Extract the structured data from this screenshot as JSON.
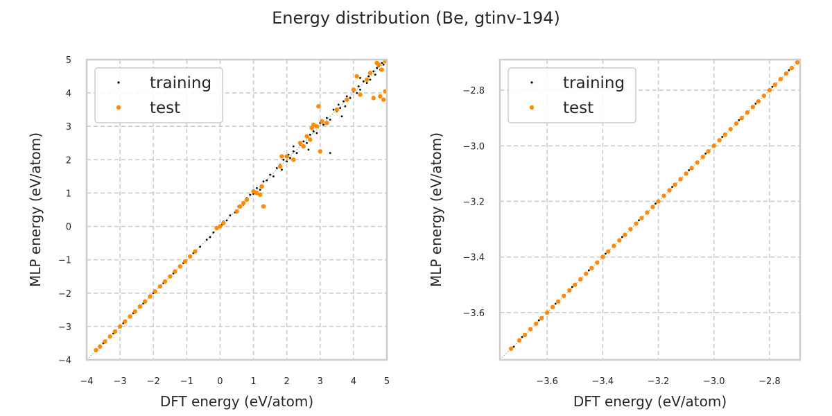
{
  "figure": {
    "title": "Energy distribution (Be, gtinv-194)"
  },
  "colors": {
    "training": "#000000",
    "test": "#ff8c00",
    "grid": "#cccccc",
    "frame": "#cccccc",
    "diagonal": "#999999"
  },
  "chart_data": [
    {
      "type": "scatter",
      "xlabel": "DFT energy (eV/atom)",
      "ylabel": "MLP energy (eV/atom)",
      "xlim": [
        -4,
        5
      ],
      "ylim": [
        -4,
        5
      ],
      "xticks": [
        -4,
        -3,
        -2,
        -1,
        0,
        1,
        2,
        3,
        4,
        5
      ],
      "yticks": [
        -4,
        -3,
        -2,
        -1,
        0,
        1,
        2,
        3,
        4,
        5
      ],
      "tick_labels_x": [
        "−4",
        "−3",
        "−2",
        "−1",
        "0",
        "1",
        "2",
        "3",
        "4",
        "5"
      ],
      "tick_labels_y": [
        "−4",
        "−3",
        "−2",
        "−1",
        "0",
        "1",
        "2",
        "3",
        "4",
        "5"
      ],
      "grid": true,
      "legend": "upper-left",
      "diagonal": "y=x",
      "series": [
        {
          "name": "training",
          "marker": "small-dot",
          "points": [
            [
              -3.7,
              -3.69
            ],
            [
              -3.5,
              -3.5
            ],
            [
              -3.2,
              -3.21
            ],
            [
              -2.9,
              -2.9
            ],
            [
              -2.6,
              -2.6
            ],
            [
              -2.3,
              -2.31
            ],
            [
              -2.0,
              -2.0
            ],
            [
              -1.7,
              -1.7
            ],
            [
              -1.4,
              -1.41
            ],
            [
              -1.1,
              -1.1
            ],
            [
              -0.8,
              -0.8
            ],
            [
              -0.6,
              -0.61
            ],
            [
              -0.4,
              -0.4
            ],
            [
              -0.3,
              -0.32
            ],
            [
              -0.2,
              -0.18
            ],
            [
              -0.1,
              -0.08
            ],
            [
              0.05,
              0.05
            ],
            [
              0.1,
              0.15
            ],
            [
              0.2,
              0.18
            ],
            [
              0.3,
              0.33
            ],
            [
              0.45,
              0.42
            ],
            [
              0.55,
              0.6
            ],
            [
              0.7,
              0.65
            ],
            [
              0.8,
              0.85
            ],
            [
              0.9,
              0.95
            ],
            [
              1.0,
              0.98
            ],
            [
              1.1,
              1.15
            ],
            [
              1.2,
              1.1
            ],
            [
              1.3,
              1.35
            ],
            [
              1.4,
              1.38
            ],
            [
              1.5,
              1.55
            ],
            [
              1.6,
              1.5
            ],
            [
              1.7,
              1.75
            ],
            [
              1.8,
              1.85
            ],
            [
              1.85,
              1.7
            ],
            [
              1.9,
              2.0
            ],
            [
              2.0,
              1.95
            ],
            [
              2.05,
              2.15
            ],
            [
              2.1,
              2.05
            ],
            [
              2.2,
              2.25
            ],
            [
              2.3,
              2.2
            ],
            [
              2.4,
              2.45
            ],
            [
              2.5,
              2.55
            ],
            [
              2.6,
              2.5
            ],
            [
              2.7,
              2.75
            ],
            [
              2.8,
              2.85
            ],
            [
              2.9,
              2.8
            ],
            [
              3.0,
              3.1
            ],
            [
              3.1,
              3.05
            ],
            [
              3.2,
              3.25
            ],
            [
              3.3,
              3.2
            ],
            [
              3.4,
              3.5
            ],
            [
              3.5,
              3.45
            ],
            [
              3.55,
              3.65
            ],
            [
              3.6,
              3.55
            ],
            [
              3.7,
              3.75
            ],
            [
              3.75,
              3.6
            ],
            [
              3.8,
              3.9
            ],
            [
              3.9,
              3.85
            ],
            [
              4.0,
              4.05
            ],
            [
              4.1,
              4.0
            ],
            [
              4.15,
              4.2
            ],
            [
              4.2,
              4.1
            ],
            [
              4.3,
              4.35
            ],
            [
              4.4,
              4.3
            ],
            [
              4.45,
              4.5
            ],
            [
              4.5,
              4.4
            ],
            [
              4.6,
              4.65
            ],
            [
              4.65,
              4.55
            ],
            [
              4.7,
              4.75
            ],
            [
              4.75,
              4.8
            ],
            [
              4.8,
              4.7
            ],
            [
              4.85,
              4.9
            ],
            [
              4.9,
              4.85
            ],
            [
              4.95,
              4.95
            ],
            [
              3.3,
              2.2
            ],
            [
              2.65,
              2.3
            ],
            [
              3.65,
              3.3
            ],
            [
              4.2,
              4.45
            ],
            [
              2.2,
              2.4
            ]
          ]
        },
        {
          "name": "test",
          "marker": "dot",
          "points": [
            [
              -3.72,
              -3.71
            ],
            [
              -3.6,
              -3.6
            ],
            [
              -3.45,
              -3.45
            ],
            [
              -3.3,
              -3.3
            ],
            [
              -3.15,
              -3.15
            ],
            [
              -3.0,
              -3.0
            ],
            [
              -2.85,
              -2.85
            ],
            [
              -2.7,
              -2.7
            ],
            [
              -2.55,
              -2.55
            ],
            [
              -2.4,
              -2.4
            ],
            [
              -2.25,
              -2.25
            ],
            [
              -2.1,
              -2.1
            ],
            [
              -1.95,
              -1.95
            ],
            [
              -1.8,
              -1.8
            ],
            [
              -1.65,
              -1.65
            ],
            [
              -1.5,
              -1.5
            ],
            [
              -1.35,
              -1.35
            ],
            [
              -1.2,
              -1.2
            ],
            [
              -1.05,
              -1.05
            ],
            [
              -0.9,
              -0.9
            ],
            [
              -0.75,
              -0.75
            ],
            [
              -0.1,
              -0.05
            ],
            [
              0.0,
              0.0
            ],
            [
              0.1,
              0.1
            ],
            [
              0.5,
              0.45
            ],
            [
              0.6,
              0.6
            ],
            [
              0.7,
              0.7
            ],
            [
              0.8,
              0.8
            ],
            [
              1.0,
              1.05
            ],
            [
              1.1,
              1.0
            ],
            [
              1.2,
              0.95
            ],
            [
              1.25,
              1.2
            ],
            [
              1.3,
              0.6
            ],
            [
              1.8,
              1.8
            ],
            [
              1.85,
              2.1
            ],
            [
              2.0,
              2.1
            ],
            [
              2.2,
              2.0
            ],
            [
              2.4,
              2.5
            ],
            [
              2.5,
              2.4
            ],
            [
              2.6,
              2.7
            ],
            [
              2.7,
              2.6
            ],
            [
              2.75,
              2.95
            ],
            [
              2.8,
              3.05
            ],
            [
              2.9,
              3.0
            ],
            [
              2.95,
              3.6
            ],
            [
              3.0,
              2.25
            ],
            [
              3.05,
              3.15
            ],
            [
              3.2,
              3.1
            ],
            [
              3.5,
              3.5
            ],
            [
              3.8,
              3.8
            ],
            [
              4.0,
              4.1
            ],
            [
              4.1,
              4.5
            ],
            [
              4.2,
              3.95
            ],
            [
              4.4,
              4.4
            ],
            [
              4.5,
              4.6
            ],
            [
              4.6,
              3.85
            ],
            [
              4.7,
              4.9
            ],
            [
              4.75,
              4.85
            ],
            [
              4.8,
              3.9
            ],
            [
              4.85,
              4.7
            ],
            [
              4.95,
              4.05
            ],
            [
              4.95,
              4.95
            ],
            [
              4.9,
              3.8
            ]
          ]
        }
      ]
    },
    {
      "type": "scatter",
      "xlabel": "DFT energy (eV/atom)",
      "ylabel": "MLP energy (eV/atom)",
      "xlim": [
        -3.77,
        -2.69
      ],
      "ylim": [
        -3.77,
        -2.69
      ],
      "xticks": [
        -3.6,
        -3.4,
        -3.2,
        -3.0,
        -2.8
      ],
      "yticks": [
        -3.6,
        -3.4,
        -3.2,
        -3.0,
        -2.8
      ],
      "tick_labels_x": [
        "−3.6",
        "−3.4",
        "−3.2",
        "−3.0",
        "−2.8"
      ],
      "tick_labels_y": [
        "−3.6",
        "−3.4",
        "−3.2",
        "−3.0",
        "−2.8"
      ],
      "grid": true,
      "legend": "upper-left",
      "diagonal": "y=x",
      "series": [
        {
          "name": "training",
          "marker": "small-dot",
          "points": [
            [
              -3.72,
              -3.723
            ],
            [
              -3.69,
              -3.688
            ],
            [
              -3.66,
              -3.664
            ],
            [
              -3.63,
              -3.628
            ],
            [
              -3.6,
              -3.603
            ],
            [
              -3.57,
              -3.568
            ],
            [
              -3.54,
              -3.544
            ],
            [
              -3.51,
              -3.508
            ],
            [
              -3.48,
              -3.483
            ],
            [
              -3.45,
              -3.448
            ],
            [
              -3.42,
              -3.424
            ],
            [
              -3.39,
              -3.388
            ],
            [
              -3.36,
              -3.363
            ],
            [
              -3.33,
              -3.328
            ],
            [
              -3.3,
              -3.304
            ],
            [
              -3.27,
              -3.268
            ],
            [
              -3.24,
              -3.243
            ],
            [
              -3.21,
              -3.208
            ],
            [
              -3.18,
              -3.184
            ],
            [
              -3.15,
              -3.148
            ],
            [
              -3.12,
              -3.123
            ],
            [
              -3.09,
              -3.088
            ],
            [
              -3.06,
              -3.064
            ],
            [
              -3.03,
              -3.028
            ],
            [
              -3.0,
              -3.003
            ],
            [
              -2.97,
              -2.968
            ],
            [
              -2.94,
              -2.944
            ],
            [
              -2.91,
              -2.908
            ],
            [
              -2.88,
              -2.883
            ],
            [
              -2.85,
              -2.848
            ],
            [
              -2.82,
              -2.824
            ],
            [
              -2.79,
              -2.788
            ],
            [
              -2.76,
              -2.763
            ],
            [
              -2.73,
              -2.728
            ],
            [
              -2.7,
              -2.702
            ]
          ]
        },
        {
          "name": "test",
          "marker": "dot",
          "points": [
            [
              -3.73,
              -3.73
            ],
            [
              -3.7,
              -3.7
            ],
            [
              -3.68,
              -3.68
            ],
            [
              -3.66,
              -3.66
            ],
            [
              -3.64,
              -3.64
            ],
            [
              -3.62,
              -3.62
            ],
            [
              -3.6,
              -3.6
            ],
            [
              -3.58,
              -3.58
            ],
            [
              -3.56,
              -3.56
            ],
            [
              -3.54,
              -3.54
            ],
            [
              -3.52,
              -3.52
            ],
            [
              -3.5,
              -3.5
            ],
            [
              -3.48,
              -3.48
            ],
            [
              -3.46,
              -3.46
            ],
            [
              -3.44,
              -3.44
            ],
            [
              -3.42,
              -3.42
            ],
            [
              -3.4,
              -3.4
            ],
            [
              -3.38,
              -3.38
            ],
            [
              -3.36,
              -3.36
            ],
            [
              -3.34,
              -3.34
            ],
            [
              -3.32,
              -3.32
            ],
            [
              -3.3,
              -3.3
            ],
            [
              -3.28,
              -3.28
            ],
            [
              -3.26,
              -3.26
            ],
            [
              -3.24,
              -3.24
            ],
            [
              -3.22,
              -3.22
            ],
            [
              -3.2,
              -3.2
            ],
            [
              -3.18,
              -3.18
            ],
            [
              -3.16,
              -3.16
            ],
            [
              -3.14,
              -3.14
            ],
            [
              -3.12,
              -3.12
            ],
            [
              -3.1,
              -3.1
            ],
            [
              -3.08,
              -3.08
            ],
            [
              -3.06,
              -3.06
            ],
            [
              -3.04,
              -3.04
            ],
            [
              -3.02,
              -3.02
            ],
            [
              -3.0,
              -3.0
            ],
            [
              -2.98,
              -2.98
            ],
            [
              -2.96,
              -2.96
            ],
            [
              -2.94,
              -2.94
            ],
            [
              -2.92,
              -2.92
            ],
            [
              -2.9,
              -2.9
            ],
            [
              -2.88,
              -2.88
            ],
            [
              -2.86,
              -2.86
            ],
            [
              -2.84,
              -2.84
            ],
            [
              -2.82,
              -2.82
            ],
            [
              -2.8,
              -2.8
            ],
            [
              -2.78,
              -2.78
            ],
            [
              -2.76,
              -2.76
            ],
            [
              -2.74,
              -2.74
            ],
            [
              -2.72,
              -2.72
            ],
            [
              -2.7,
              -2.7
            ]
          ]
        }
      ]
    }
  ]
}
